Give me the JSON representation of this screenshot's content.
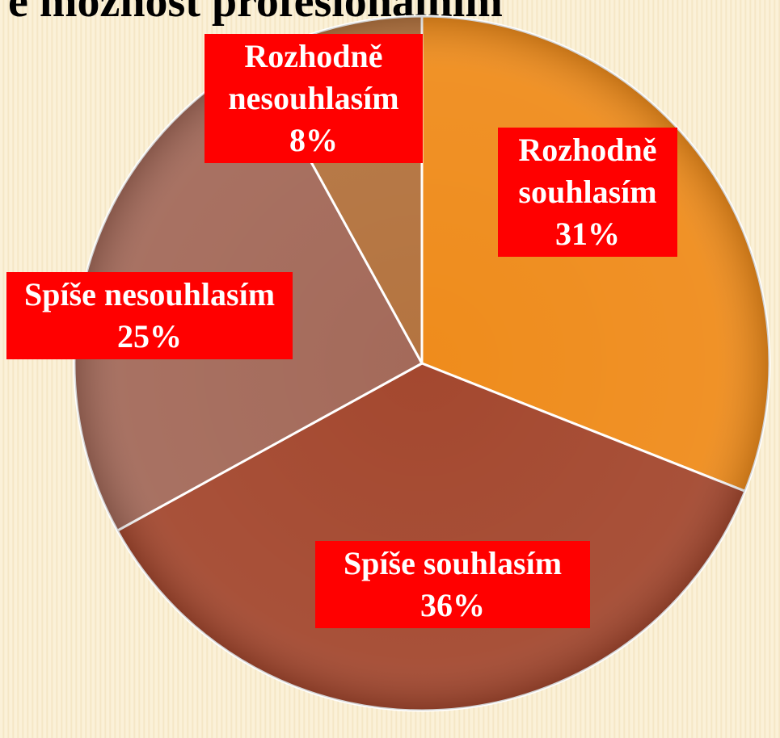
{
  "chart_data": {
    "type": "pie",
    "title": "e možnost profesionálním",
    "categories": [
      "Rozhodně souhlasím",
      "Spíše souhlasím",
      "Spíše nesouhlasím",
      "Rozhodně nesouhlasím"
    ],
    "values": [
      31,
      36,
      25,
      8
    ],
    "value_labels": [
      "31%",
      "36%",
      "25%",
      "8%"
    ],
    "colors": [
      "#ef8c1c",
      "#a4482f",
      "#a46a5a",
      "#b47440"
    ],
    "label_background": "#ff0000"
  }
}
